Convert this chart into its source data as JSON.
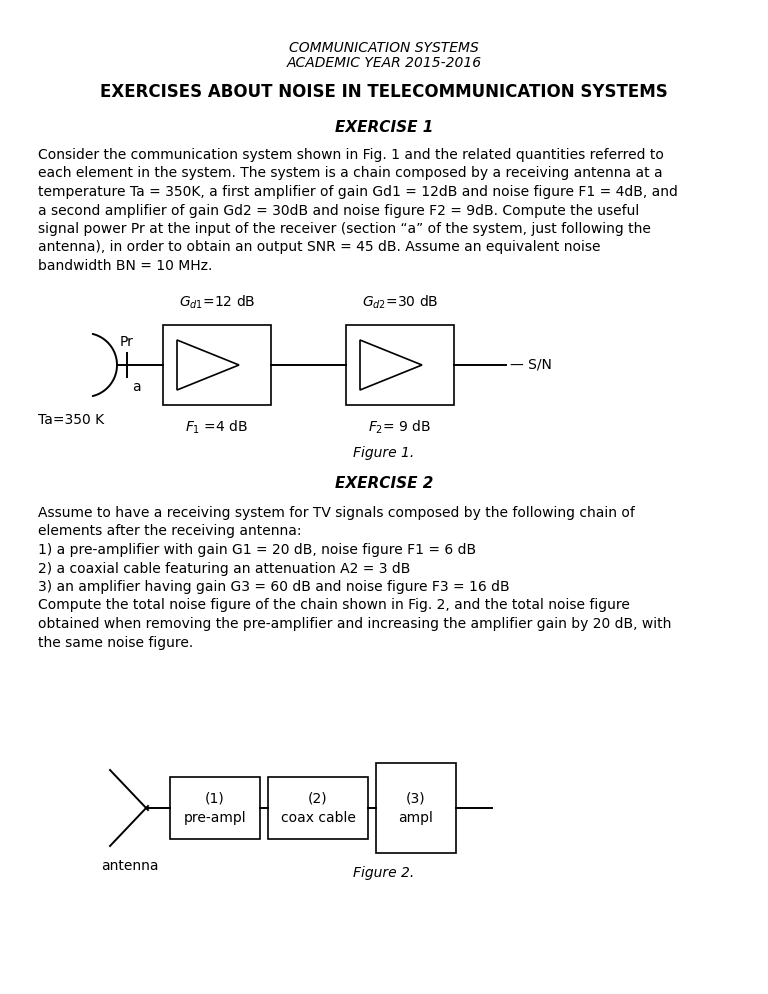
{
  "title_line1": "COMMUNICATION SYSTEMS",
  "title_line2": "ACADEMIC YEAR 2015-2016",
  "main_title": "EXERCISES ABOUT NOISE IN TELECOMMUNICATION SYSTEMS",
  "exercise1_title": "EXERCISE 1",
  "fig1_caption": "Figure 1.",
  "exercise2_title": "EXERCISE 2",
  "fig2_caption": "Figure 2.",
  "background_color": "#ffffff",
  "text_color": "#000000",
  "ex1_lines": [
    "Consider the communication system shown in Fig. 1 and the related quantities referred to",
    "each element in the system. The system is a chain composed by a receiving antenna at a",
    "temperature Ta = 350K, a first amplifier of gain Gd1 = 12dB and noise figure F1 = 4dB, and",
    "a second amplifier of gain Gd2 = 30dB and noise figure F2 = 9dB. Compute the useful",
    "signal power Pr at the input of the receiver (section “a” of the system, just following the",
    "antenna), in order to obtain an output SNR = 45 dB. Assume an equivalent noise",
    "bandwidth BN = 10 MHz."
  ],
  "ex2_lines": [
    "Assume to have a receiving system for TV signals composed by the following chain of",
    "elements after the receiving antenna:",
    "1) a pre-amplifier with gain G1 = 20 dB, noise figure F1 = 6 dB",
    "2) a coaxial cable featuring an attenuation A2 = 3 dB",
    "3) an amplifier having gain G3 = 60 dB and noise figure F3 = 16 dB",
    "Compute the total noise figure of the chain shown in Fig. 2, and the total noise figure",
    "obtained when removing the pre-amplifier and increasing the amplifier gain by 20 dB, with",
    "the same noise figure."
  ]
}
